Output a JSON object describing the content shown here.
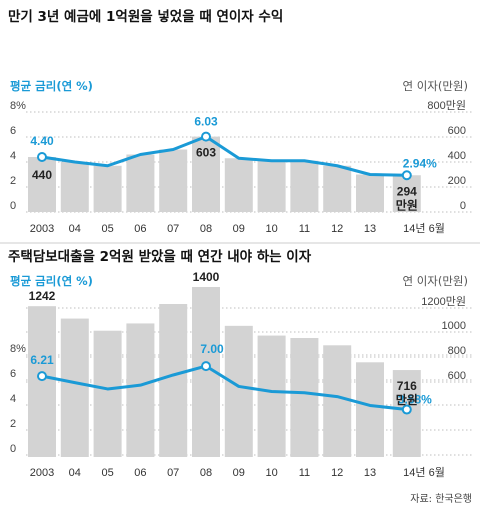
{
  "chart_data": [
    {
      "type": "bar+line",
      "title": "만기 3년 예금에 1억원을 넣었을 때 연이자 수익",
      "left_axis_label": "평균 금리(연 %)",
      "right_axis_label": "연 이자(만원)",
      "categories": [
        "2003",
        "04",
        "05",
        "06",
        "07",
        "08",
        "09",
        "10",
        "11",
        "12",
        "13",
        "14년 6월"
      ],
      "left_ticks": [
        "8%",
        "6",
        "4",
        "2",
        "0"
      ],
      "right_ticks": [
        "800만원",
        "600",
        "400",
        "200",
        "0"
      ],
      "ylim_left": [
        0,
        8
      ],
      "ylim_right": [
        0,
        800
      ],
      "series": [
        {
          "name": "평균 금리(연 %)",
          "kind": "line",
          "values": [
            4.4,
            4.0,
            3.7,
            4.6,
            5.0,
            6.03,
            4.3,
            4.1,
            4.1,
            3.7,
            3.0,
            2.94
          ]
        },
        {
          "name": "연 이자(만원)",
          "kind": "bar",
          "values": [
            440,
            400,
            370,
            460,
            500,
            603,
            430,
            410,
            410,
            370,
            300,
            294
          ]
        }
      ],
      "annotations": [
        {
          "series": 0,
          "index": 0,
          "text": "4.40"
        },
        {
          "series": 0,
          "index": 5,
          "text": "6.03"
        },
        {
          "series": 0,
          "index": 11,
          "text": "2.94%"
        },
        {
          "series": 1,
          "index": 0,
          "text": "440"
        },
        {
          "series": 1,
          "index": 5,
          "text": "603"
        },
        {
          "series": 1,
          "index": 11,
          "text": "294",
          "unit": "만원"
        }
      ]
    },
    {
      "type": "bar+line",
      "title": "주택담보대출을 2억원 받았을 때 연간 내야 하는 이자",
      "left_axis_label": "평균 금리(연 %)",
      "right_axis_label": "연 이자(만원)",
      "categories": [
        "2003",
        "04",
        "05",
        "06",
        "07",
        "08",
        "09",
        "10",
        "11",
        "12",
        "13",
        "14년 6월"
      ],
      "left_ticks": [
        "8%",
        "6",
        "4",
        "2",
        "0"
      ],
      "right_ticks": [
        "1200만원",
        "1000",
        "800",
        "600"
      ],
      "ylim_left": [
        0,
        8
      ],
      "ylim_right": [
        0,
        1400
      ],
      "series": [
        {
          "name": "평균 금리(연 %)",
          "kind": "line",
          "values": [
            6.21,
            5.7,
            5.2,
            5.5,
            6.3,
            7.0,
            5.4,
            5.0,
            4.9,
            4.6,
            3.9,
            3.58
          ]
        },
        {
          "name": "연 이자(만원)",
          "kind": "bar",
          "values": [
            1242,
            1140,
            1040,
            1100,
            1260,
            1400,
            1080,
            1000,
            980,
            920,
            780,
            716
          ]
        }
      ],
      "annotations": [
        {
          "series": 0,
          "index": 0,
          "text": "6.21"
        },
        {
          "series": 0,
          "index": 5,
          "text": "7.00"
        },
        {
          "series": 0,
          "index": 11,
          "text": "3.58%"
        },
        {
          "series": 1,
          "index": 0,
          "text": "1242"
        },
        {
          "series": 1,
          "index": 5,
          "text": "1400"
        },
        {
          "series": 1,
          "index": 11,
          "text": "716",
          "unit": "만원"
        }
      ]
    }
  ],
  "source": "자료: 한국은행",
  "colors": {
    "bar": "#d3d3d3",
    "line": "#1a9ad6",
    "accent_text": "#1a9ad6",
    "grid": "#aaaaaa"
  }
}
